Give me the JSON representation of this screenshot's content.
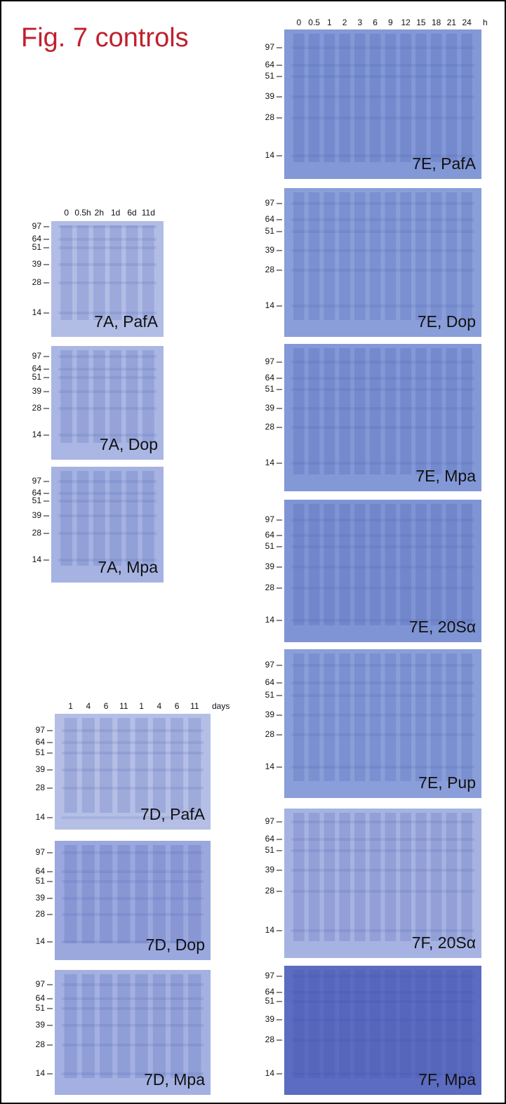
{
  "header": {
    "title": "Fig. 7 controls"
  },
  "groups": [
    {
      "lanes": [
        "0",
        "0.5",
        "1",
        "2",
        "3",
        "6",
        "9",
        "12",
        "15",
        "18",
        "21",
        "24"
      ],
      "unit": "h",
      "panels": [
        {
          "label": "7E, PafA",
          "markers": [
            97,
            64,
            51,
            39,
            28,
            14
          ]
        },
        {
          "label": "7E, Dop",
          "markers": [
            97,
            64,
            51,
            39,
            28,
            14
          ]
        },
        {
          "label": "7E, Mpa",
          "markers": [
            97,
            64,
            51,
            39,
            28,
            14
          ]
        },
        {
          "label": "7E, 20Sα",
          "markers": [
            97,
            64,
            51,
            39,
            28,
            14
          ]
        },
        {
          "label": "7E, Pup",
          "markers": [
            97,
            64,
            51,
            39,
            28,
            14
          ]
        },
        {
          "label": "7F, 20Sα",
          "markers": [
            97,
            64,
            51,
            39,
            28,
            14
          ]
        },
        {
          "label": "7F, Mpa",
          "markers": [
            97,
            64,
            51,
            39,
            28,
            14
          ]
        }
      ]
    },
    {
      "lanes": [
        "0",
        "0.5h",
        "2h",
        "1d",
        "6d",
        "11d"
      ],
      "panels": [
        {
          "label": "7A, PafA",
          "markers": [
            97,
            64,
            51,
            39,
            28,
            14
          ]
        },
        {
          "label": "7A, Dop",
          "markers": [
            97,
            64,
            51,
            39,
            28,
            14
          ]
        },
        {
          "label": "7A, Mpa",
          "markers": [
            97,
            64,
            51,
            39,
            28,
            14
          ]
        }
      ]
    },
    {
      "lanes": [
        "1",
        "4",
        "6",
        "11",
        "1",
        "4",
        "6",
        "11"
      ],
      "unit": "days",
      "panels": [
        {
          "label": "7D, PafA",
          "markers": [
            97,
            64,
            51,
            39,
            28,
            14
          ]
        },
        {
          "label": "7D, Dop",
          "markers": [
            97,
            64,
            51,
            39,
            28,
            14
          ]
        },
        {
          "label": "7D, Mpa",
          "markers": [
            97,
            64,
            51,
            39,
            28,
            14
          ]
        }
      ]
    }
  ]
}
